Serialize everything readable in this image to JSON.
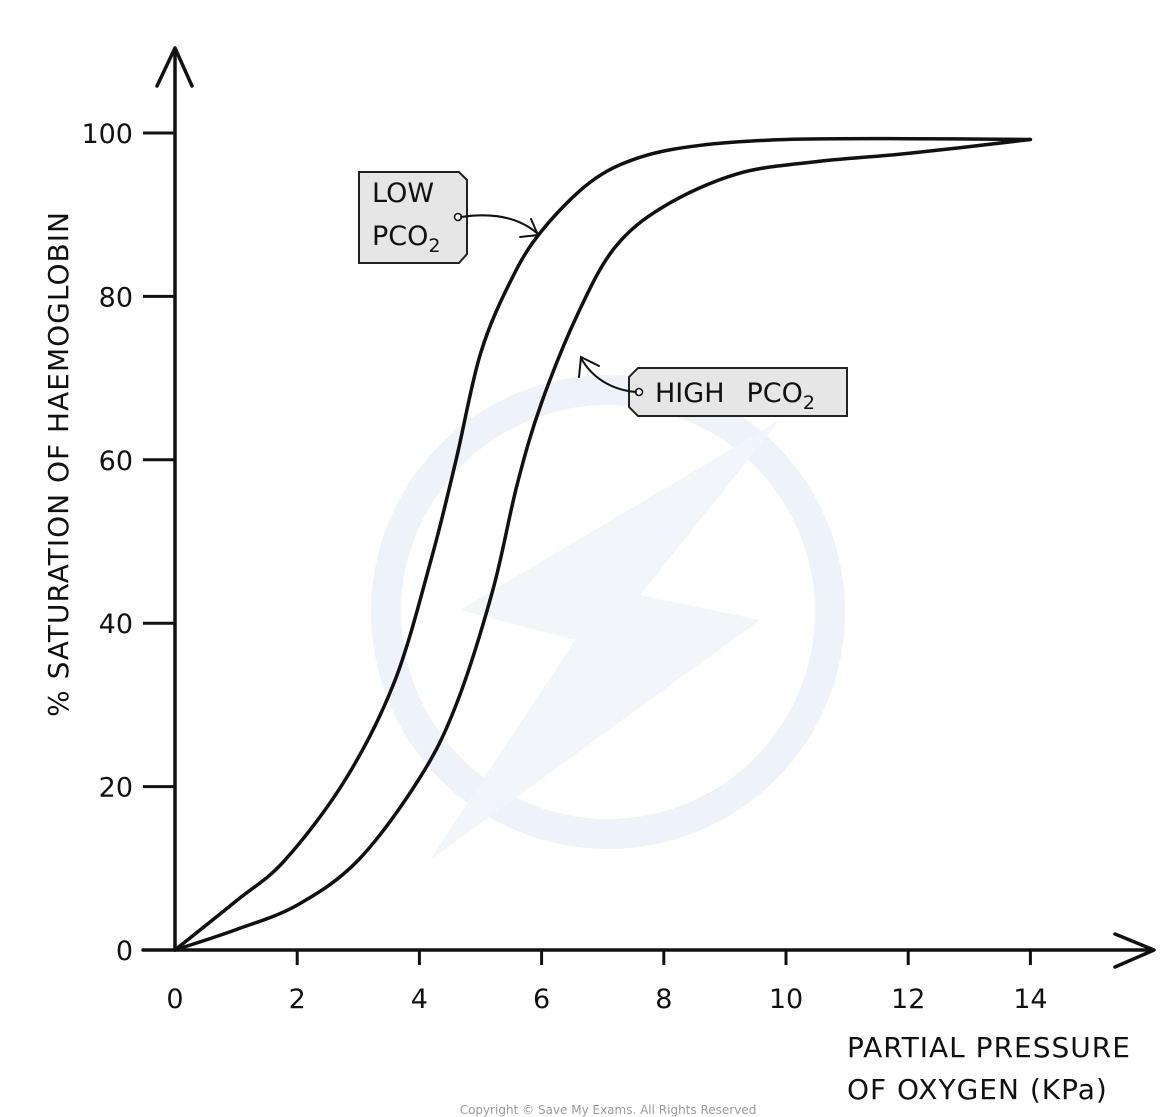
{
  "chart_data": {
    "type": "line",
    "title": "",
    "xlabel": [
      "PARTIAL PRESSURE",
      "OF OXYGEN (KPa)"
    ],
    "ylabel": "% SATURATION OF HAEMOGLOBIN",
    "xlim": [
      0,
      16
    ],
    "ylim": [
      0,
      110
    ],
    "xticks": [
      "0",
      "2",
      "4",
      "6",
      "8",
      "10",
      "12",
      "14"
    ],
    "yticks": [
      "0",
      "20",
      "40",
      "60",
      "80",
      "100"
    ],
    "grid": false,
    "series": [
      {
        "name": "LOW PCO2",
        "x": [
          0,
          1,
          1.8,
          2.8,
          3.6,
          4.2,
          4.6,
          5.0,
          5.5,
          6.0,
          6.8,
          7.6,
          8.6,
          10,
          12,
          14
        ],
        "y": [
          0,
          6,
          11,
          21,
          33,
          48,
          60,
          73,
          82,
          88,
          94,
          97,
          98.5,
          99.2,
          99.3,
          99.2
        ]
      },
      {
        "name": "HIGH PCO2",
        "x": [
          0,
          1,
          2,
          3,
          4,
          4.6,
          5.2,
          5.6,
          6.0,
          6.6,
          7.2,
          8.0,
          9.2,
          10.5,
          12,
          14
        ],
        "y": [
          0,
          2.5,
          5.5,
          11,
          21,
          30,
          44,
          57,
          67,
          78,
          86,
          91,
          95,
          96.5,
          97.5,
          99.2
        ]
      }
    ],
    "annotations": [
      {
        "label": "LOW",
        "formula": "PCO",
        "subscript": "2"
      },
      {
        "label": "HIGH",
        "formula": "PCO",
        "subscript": "2"
      }
    ]
  },
  "footer": {
    "copyright": "Copyright © Save My Exams. All Rights Reserved"
  }
}
